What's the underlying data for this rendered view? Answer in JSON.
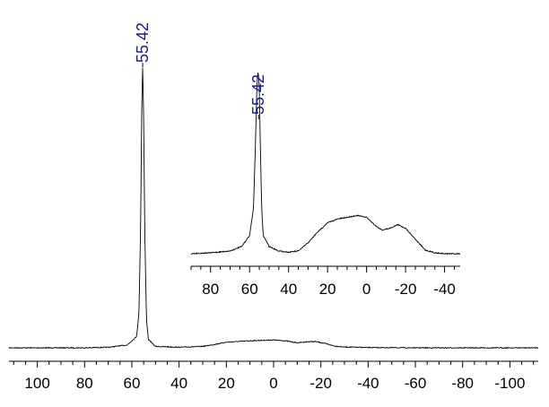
{
  "chart_data": [
    {
      "type": "line",
      "title": "",
      "xlabel": "",
      "ylabel": "",
      "xlim": [
        112,
        -112
      ],
      "x_ticks": [
        100,
        80,
        60,
        40,
        20,
        0,
        -20,
        -40,
        -60,
        -80,
        -100
      ],
      "x_tick_labels": [
        "100",
        "80",
        "60",
        "40",
        "20",
        "0",
        "-20",
        "-40",
        "-60",
        "-80",
        "-100"
      ],
      "grid": false,
      "peak_labels": [
        {
          "x": 55.42,
          "label": "55.42"
        }
      ],
      "series": [
        {
          "x": [
            112,
            80,
            70,
            62,
            58,
            57,
            56.3,
            55.8,
            55.42,
            55.0,
            54.5,
            53.8,
            53,
            50,
            40,
            30,
            25,
            20,
            10,
            0,
            -5,
            -10,
            -15,
            -18,
            -22,
            -26,
            -30,
            -40,
            -60,
            -80,
            -100,
            -112
          ],
          "y": [
            0,
            0,
            0.002,
            0.01,
            0.04,
            0.12,
            0.42,
            0.85,
            1.0,
            0.82,
            0.4,
            0.1,
            0.03,
            0.005,
            0.002,
            0.005,
            0.012,
            0.02,
            0.025,
            0.028,
            0.025,
            0.018,
            0.022,
            0.022,
            0.015,
            0.006,
            0.003,
            0.001,
            0,
            0,
            0,
            0
          ]
        }
      ]
    },
    {
      "type": "line",
      "title": "",
      "xlabel": "",
      "ylabel": "",
      "xlim": [
        90,
        -48
      ],
      "x_ticks": [
        80,
        60,
        40,
        20,
        0,
        -20,
        -40
      ],
      "x_tick_labels": [
        "80",
        "60",
        "40",
        "20",
        "0",
        "-20",
        "-40"
      ],
      "grid": false,
      "peak_labels": [
        {
          "x": 55.42,
          "label": "55.42"
        }
      ],
      "series": [
        {
          "x": [
            90,
            80,
            70,
            64,
            60,
            58,
            57,
            56.3,
            55.8,
            55.42,
            55.0,
            54.5,
            53.8,
            53,
            50,
            45,
            40,
            35,
            30,
            25,
            20,
            15,
            10,
            5,
            0,
            -5,
            -8,
            -12,
            -16,
            -20,
            -25,
            -30,
            -35,
            -40,
            -48
          ],
          "y": [
            0,
            0.005,
            0.015,
            0.04,
            0.1,
            0.25,
            0.6,
            0.9,
            1.0,
            0.98,
            0.9,
            0.6,
            0.25,
            0.1,
            0.04,
            0.015,
            0.008,
            0.015,
            0.06,
            0.12,
            0.17,
            0.19,
            0.2,
            0.21,
            0.2,
            0.15,
            0.13,
            0.14,
            0.16,
            0.14,
            0.08,
            0.02,
            0.005,
            0,
            0
          ]
        }
      ]
    }
  ]
}
